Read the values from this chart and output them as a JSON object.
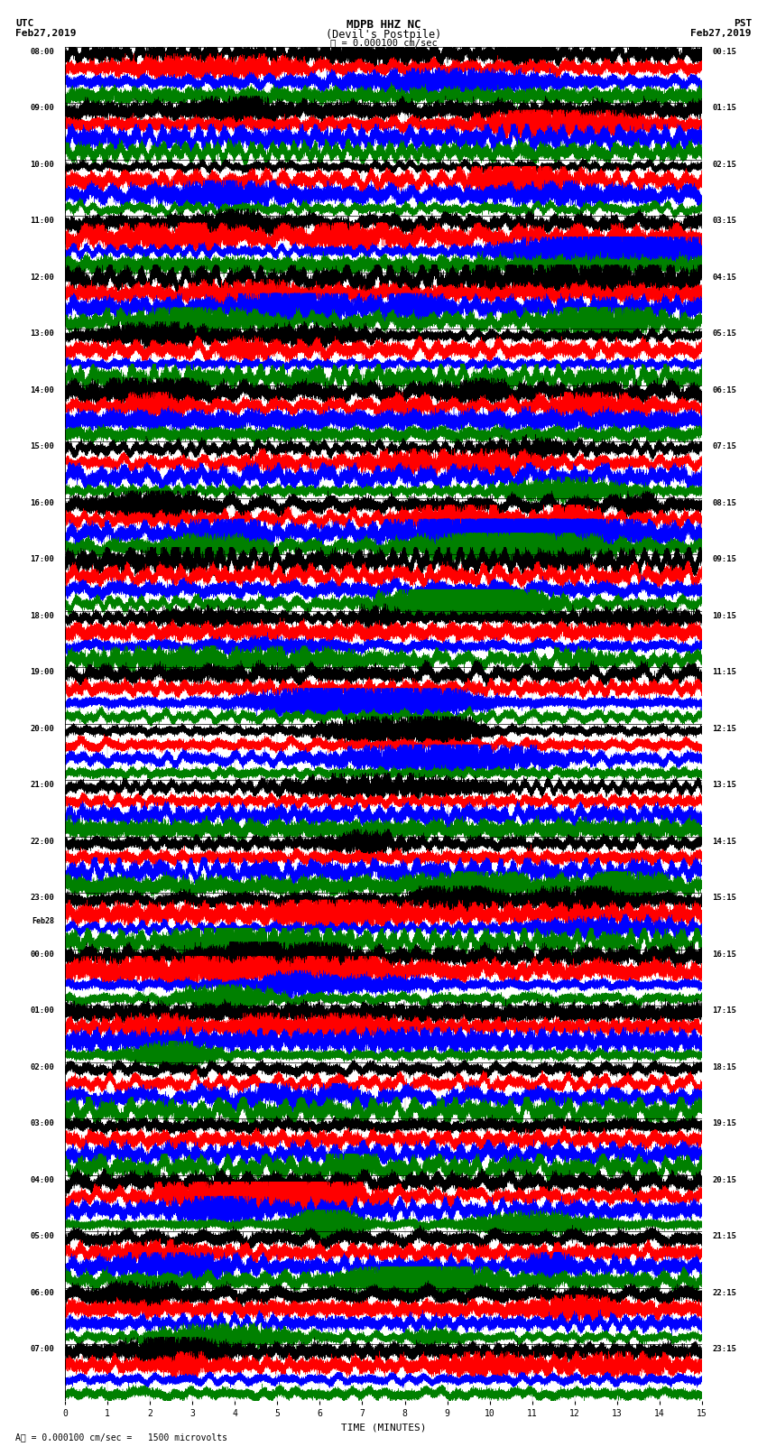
{
  "title_line1": "MDPB HHZ NC",
  "title_line2": "(Devil's Postpile)",
  "scale_text": "= 0.000100 cm/sec",
  "left_timezone": "UTC",
  "left_date": "Feb27,2019",
  "right_timezone": "PST",
  "right_date": "Feb27,2019",
  "xlabel": "TIME (MINUTES)",
  "bottom_label": "= 0.000100 cm/sec =   1500 microvolts",
  "colors": [
    "black",
    "red",
    "blue",
    "green"
  ],
  "traces_per_group": 4,
  "minutes_per_row": 15,
  "num_groups": 24,
  "sample_rate": 40,
  "fig_width": 8.5,
  "fig_height": 16.13,
  "dpi": 100,
  "left_times": [
    "08:00",
    "09:00",
    "10:00",
    "11:00",
    "12:00",
    "13:00",
    "14:00",
    "15:00",
    "16:00",
    "17:00",
    "18:00",
    "19:00",
    "20:00",
    "21:00",
    "22:00",
    "23:00",
    "00:00",
    "01:00",
    "02:00",
    "03:00",
    "04:00",
    "05:00",
    "06:00",
    "07:00"
  ],
  "feb28_at_group": 16,
  "right_times": [
    "00:15",
    "01:15",
    "02:15",
    "03:15",
    "04:15",
    "05:15",
    "06:15",
    "07:15",
    "08:15",
    "09:15",
    "10:15",
    "11:15",
    "12:15",
    "13:15",
    "14:15",
    "15:15",
    "16:15",
    "17:15",
    "18:15",
    "19:15",
    "20:15",
    "21:15",
    "22:15",
    "23:15"
  ],
  "noise_base": 0.018,
  "amplitude_scale": 0.042,
  "background_color": "white",
  "trace_linewidth": 0.3,
  "separator_linewidth": 0.5,
  "xmin": 0,
  "xmax": 15
}
